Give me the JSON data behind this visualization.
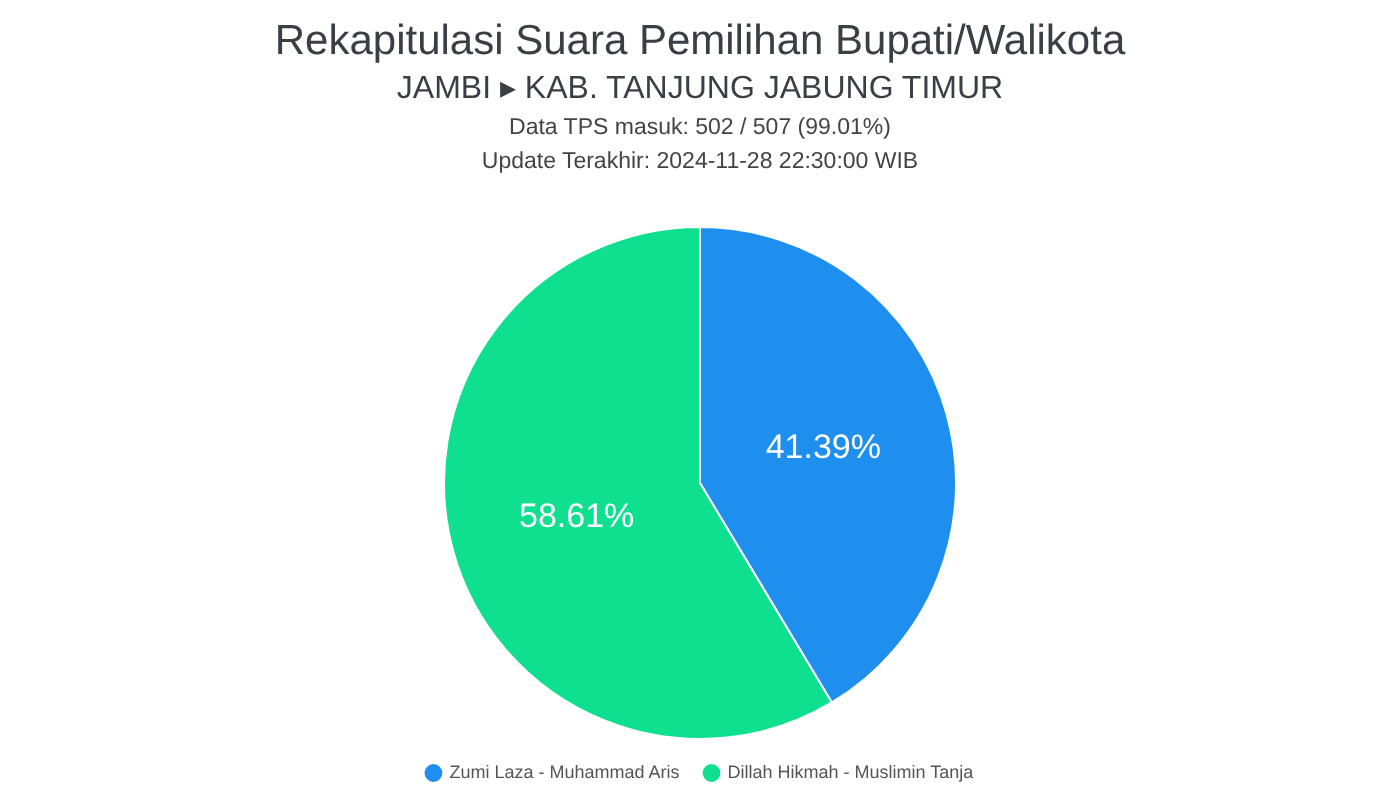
{
  "chart_data": {
    "type": "pie",
    "title": "Rekapitulasi Suara Pemilihan Bupati/Walikota",
    "subtitle": "JAMBI ▸ KAB. TANJUNG JABUNG TIMUR",
    "annotations": [
      "Data TPS masuk: 502 / 507 (99.01%)",
      "Update Terakhir: 2024-11-28 22:30:00 WIB"
    ],
    "categories": [
      "Zumi Laza - Muhammad Aris",
      "Dillah Hikmah - Muslimin Tanja"
    ],
    "values": [
      41.39,
      58.61
    ],
    "colors": [
      "#1e8fef",
      "#0fe08f"
    ],
    "value_labels": [
      "41.39%",
      "58.61%"
    ],
    "legend": "bottom"
  }
}
